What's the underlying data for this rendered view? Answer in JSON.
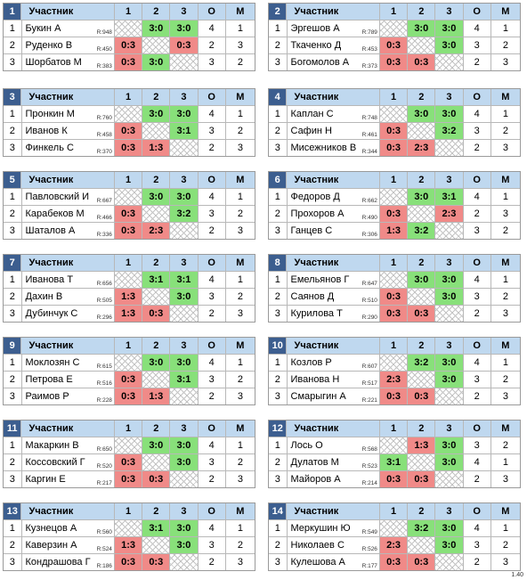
{
  "header": {
    "participant": "Участник",
    "c1": "1",
    "c2": "2",
    "c3": "3",
    "o": "O",
    "m": "M"
  },
  "version": "1.40",
  "groups": [
    {
      "num": "1",
      "rows": [
        {
          "place": "1",
          "name": "Букин А",
          "rating": "R:948",
          "r1": "",
          "r2": "3:0",
          "r3": "3:0",
          "o": "4",
          "m": "1"
        },
        {
          "place": "2",
          "name": "Руденко В",
          "rating": "R:450",
          "r1": "0:3",
          "r2": "",
          "r3": "0:3",
          "o": "2",
          "m": "3"
        },
        {
          "place": "3",
          "name": "Шорбатов М",
          "rating": "R:383",
          "r1": "0:3",
          "r2": "3:0",
          "r3": "",
          "o": "3",
          "m": "2"
        }
      ]
    },
    {
      "num": "2",
      "rows": [
        {
          "place": "1",
          "name": "Эргешов А",
          "rating": "R:789",
          "r1": "",
          "r2": "3:0",
          "r3": "3:0",
          "o": "4",
          "m": "1"
        },
        {
          "place": "2",
          "name": "Ткаченко Д",
          "rating": "R:453",
          "r1": "0:3",
          "r2": "",
          "r3": "3:0",
          "o": "3",
          "m": "2"
        },
        {
          "place": "3",
          "name": "Богомолов А",
          "rating": "R:373",
          "r1": "0:3",
          "r2": "0:3",
          "r3": "",
          "o": "2",
          "m": "3"
        }
      ]
    },
    {
      "num": "3",
      "rows": [
        {
          "place": "1",
          "name": "Пронкин М",
          "rating": "R:760",
          "r1": "",
          "r2": "3:0",
          "r3": "3:0",
          "o": "4",
          "m": "1"
        },
        {
          "place": "2",
          "name": "Иванов К",
          "rating": "R:458",
          "r1": "0:3",
          "r2": "",
          "r3": "3:1",
          "o": "3",
          "m": "2"
        },
        {
          "place": "3",
          "name": "Финкель С",
          "rating": "R:370",
          "r1": "0:3",
          "r2": "1:3",
          "r3": "",
          "o": "2",
          "m": "3"
        }
      ]
    },
    {
      "num": "4",
      "rows": [
        {
          "place": "1",
          "name": "Каплан С",
          "rating": "R:748",
          "r1": "",
          "r2": "3:0",
          "r3": "3:0",
          "o": "4",
          "m": "1"
        },
        {
          "place": "2",
          "name": "Сафин Н",
          "rating": "R:461",
          "r1": "0:3",
          "r2": "",
          "r3": "3:2",
          "o": "3",
          "m": "2"
        },
        {
          "place": "3",
          "name": "Мисежников В",
          "rating": "R:344",
          "r1": "0:3",
          "r2": "2:3",
          "r3": "",
          "o": "2",
          "m": "3"
        }
      ]
    },
    {
      "num": "5",
      "rows": [
        {
          "place": "1",
          "name": "Павловский И",
          "rating": "R:667",
          "r1": "",
          "r2": "3:0",
          "r3": "3:0",
          "o": "4",
          "m": "1"
        },
        {
          "place": "2",
          "name": "Карабеков М",
          "rating": "R:466",
          "r1": "0:3",
          "r2": "",
          "r3": "3:2",
          "o": "3",
          "m": "2"
        },
        {
          "place": "3",
          "name": "Шаталов А",
          "rating": "R:336",
          "r1": "0:3",
          "r2": "2:3",
          "r3": "",
          "o": "2",
          "m": "3"
        }
      ]
    },
    {
      "num": "6",
      "rows": [
        {
          "place": "1",
          "name": "Федоров Д",
          "rating": "R:662",
          "r1": "",
          "r2": "3:0",
          "r3": "3:1",
          "o": "4",
          "m": "1"
        },
        {
          "place": "2",
          "name": "Прохоров А",
          "rating": "R:490",
          "r1": "0:3",
          "r2": "",
          "r3": "2:3",
          "o": "2",
          "m": "3"
        },
        {
          "place": "3",
          "name": "Ганцев С",
          "rating": "R:306",
          "r1": "1:3",
          "r2": "3:2",
          "r3": "",
          "o": "3",
          "m": "2"
        }
      ]
    },
    {
      "num": "7",
      "rows": [
        {
          "place": "1",
          "name": "Иванова Т",
          "rating": "R:656",
          "r1": "",
          "r2": "3:1",
          "r3": "3:1",
          "o": "4",
          "m": "1"
        },
        {
          "place": "2",
          "name": "Дахин В",
          "rating": "R:505",
          "r1": "1:3",
          "r2": "",
          "r3": "3:0",
          "o": "3",
          "m": "2"
        },
        {
          "place": "3",
          "name": "Дубинчук С",
          "rating": "R:296",
          "r1": "1:3",
          "r2": "0:3",
          "r3": "",
          "o": "2",
          "m": "3"
        }
      ]
    },
    {
      "num": "8",
      "rows": [
        {
          "place": "1",
          "name": "Емельянов Г",
          "rating": "R:647",
          "r1": "",
          "r2": "3:0",
          "r3": "3:0",
          "o": "4",
          "m": "1"
        },
        {
          "place": "2",
          "name": "Саянов Д",
          "rating": "R:510",
          "r1": "0:3",
          "r2": "",
          "r3": "3:0",
          "o": "3",
          "m": "2"
        },
        {
          "place": "3",
          "name": "Курилова Т",
          "rating": "R:290",
          "r1": "0:3",
          "r2": "0:3",
          "r3": "",
          "o": "2",
          "m": "3"
        }
      ]
    },
    {
      "num": "9",
      "rows": [
        {
          "place": "1",
          "name": "Моклозян С",
          "rating": "R:615",
          "r1": "",
          "r2": "3:0",
          "r3": "3:0",
          "o": "4",
          "m": "1"
        },
        {
          "place": "2",
          "name": "Петрова Е",
          "rating": "R:516",
          "r1": "0:3",
          "r2": "",
          "r3": "3:1",
          "o": "3",
          "m": "2"
        },
        {
          "place": "3",
          "name": "Раимов Р",
          "rating": "R:228",
          "r1": "0:3",
          "r2": "1:3",
          "r3": "",
          "o": "2",
          "m": "3"
        }
      ]
    },
    {
      "num": "10",
      "rows": [
        {
          "place": "1",
          "name": "Козлов Р",
          "rating": "R:607",
          "r1": "",
          "r2": "3:2",
          "r3": "3:0",
          "o": "4",
          "m": "1"
        },
        {
          "place": "2",
          "name": "Иванова Н",
          "rating": "R:517",
          "r1": "2:3",
          "r2": "",
          "r3": "3:0",
          "o": "3",
          "m": "2"
        },
        {
          "place": "3",
          "name": "Смарыгин А",
          "rating": "R:221",
          "r1": "0:3",
          "r2": "0:3",
          "r3": "",
          "o": "2",
          "m": "3"
        }
      ]
    },
    {
      "num": "11",
      "rows": [
        {
          "place": "1",
          "name": "Макаркин В",
          "rating": "R:650",
          "r1": "",
          "r2": "3:0",
          "r3": "3:0",
          "o": "4",
          "m": "1"
        },
        {
          "place": "2",
          "name": "Коссовский Г",
          "rating": "R:520",
          "r1": "0:3",
          "r2": "",
          "r3": "3:0",
          "o": "3",
          "m": "2"
        },
        {
          "place": "3",
          "name": "Каргин Е",
          "rating": "R:217",
          "r1": "0:3",
          "r2": "0:3",
          "r3": "",
          "o": "2",
          "m": "3"
        }
      ]
    },
    {
      "num": "12",
      "rows": [
        {
          "place": "1",
          "name": "Лось О",
          "rating": "R:568",
          "r1": "",
          "r2": "1:3",
          "r3": "3:0",
          "o": "3",
          "m": "2"
        },
        {
          "place": "2",
          "name": "Дулатов М",
          "rating": "R:523",
          "r1": "3:1",
          "r2": "",
          "r3": "3:0",
          "o": "4",
          "m": "1"
        },
        {
          "place": "3",
          "name": "Майоров А",
          "rating": "R:214",
          "r1": "0:3",
          "r2": "0:3",
          "r3": "",
          "o": "2",
          "m": "3"
        }
      ]
    },
    {
      "num": "13",
      "rows": [
        {
          "place": "1",
          "name": "Кузнецов А",
          "rating": "R:560",
          "r1": "",
          "r2": "3:1",
          "r3": "3:0",
          "o": "4",
          "m": "1"
        },
        {
          "place": "2",
          "name": "Каверзин А",
          "rating": "R:524",
          "r1": "1:3",
          "r2": "",
          "r3": "3:0",
          "o": "3",
          "m": "2"
        },
        {
          "place": "3",
          "name": "Кондрашова Г",
          "rating": "R:186",
          "r1": "0:3",
          "r2": "0:3",
          "r3": "",
          "o": "2",
          "m": "3"
        }
      ]
    },
    {
      "num": "14",
      "rows": [
        {
          "place": "1",
          "name": "Меркушин Ю",
          "rating": "R:549",
          "r1": "",
          "r2": "3:2",
          "r3": "3:0",
          "o": "4",
          "m": "1"
        },
        {
          "place": "2",
          "name": "Николаев С",
          "rating": "R:526",
          "r1": "2:3",
          "r2": "",
          "r3": "3:0",
          "o": "3",
          "m": "2"
        },
        {
          "place": "3",
          "name": "Кулешова А",
          "rating": "R:177",
          "r1": "0:3",
          "r2": "0:3",
          "r3": "",
          "o": "2",
          "m": "3"
        }
      ]
    }
  ]
}
